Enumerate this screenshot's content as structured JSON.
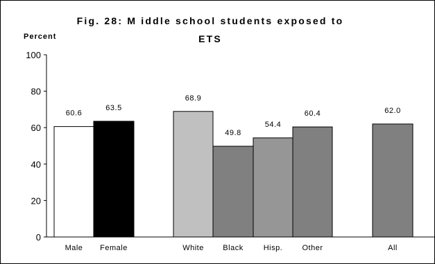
{
  "chart_data": {
    "type": "bar",
    "title": "Fig. 28: Middle school students exposed to ETS",
    "title_lines": [
      "Fig. 28:  M iddle school students exposed to",
      "ETS"
    ],
    "ylabel": "Percent",
    "xlabel": "",
    "ylim": [
      0,
      100
    ],
    "yticks": [
      0,
      20,
      40,
      60,
      80,
      100
    ],
    "grid": false,
    "legend": "none",
    "categories": [
      "Male",
      "Female",
      "White",
      "Black",
      "Hisp.",
      "Other",
      "All"
    ],
    "values": [
      60.6,
      63.5,
      68.9,
      49.8,
      54.4,
      60.4,
      62.0
    ],
    "value_labels": [
      "60.6",
      "63.5",
      "68.9",
      "49.8",
      "54.4",
      "60.4",
      "62.0"
    ],
    "bar_colors": [
      "#ffffff",
      "#000000",
      "#c0c0c0",
      "#808080",
      "#969696",
      "#808080",
      "#808080"
    ]
  }
}
